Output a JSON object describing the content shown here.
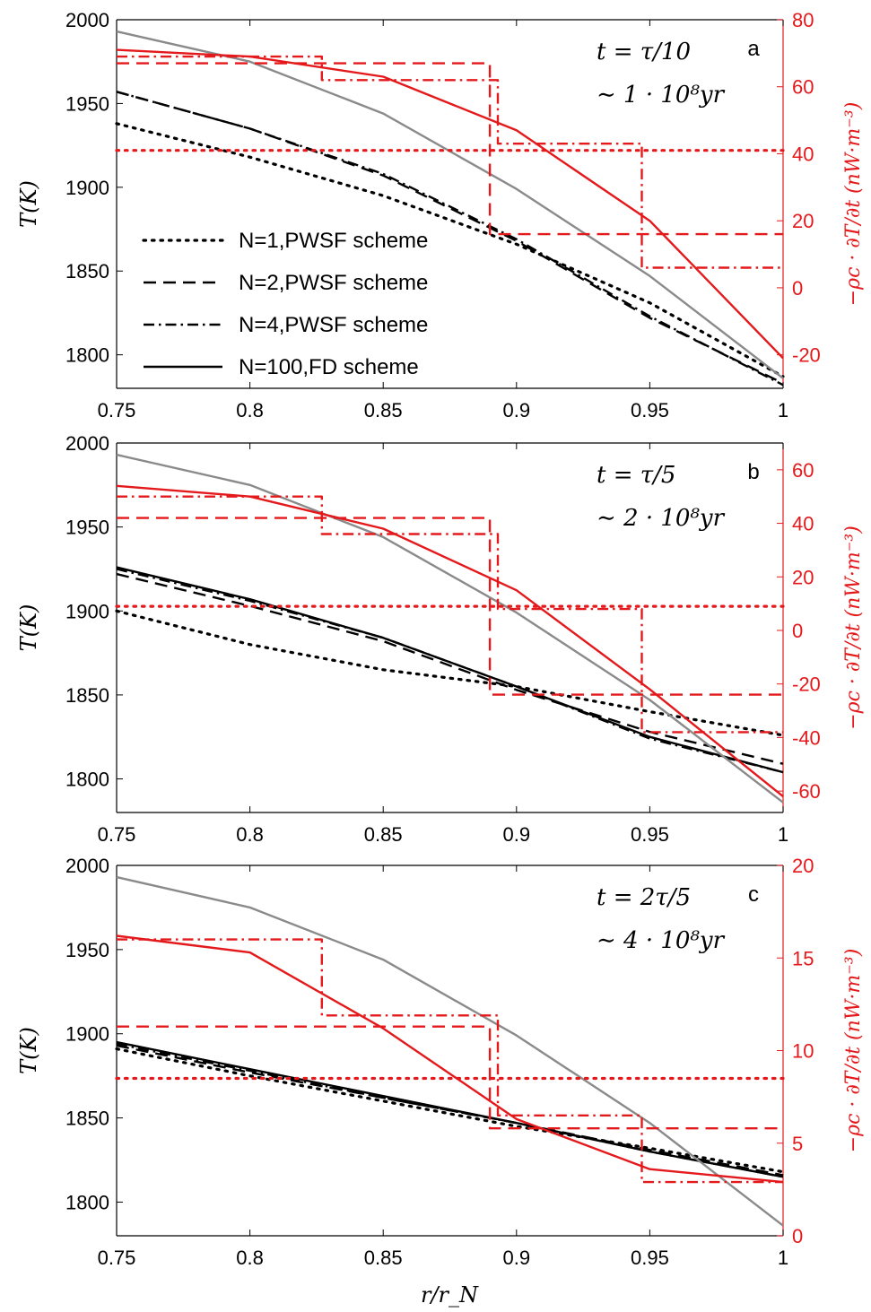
{
  "figure": {
    "xlabel": "r/r_N",
    "colors": {
      "black": "#000000",
      "red": "#e4191c",
      "gray": "#8a8a8a"
    },
    "legend": [
      "N=1,PWSF scheme",
      "N=2,PWSF scheme",
      "N=4,PWSF scheme",
      "N=100,FD scheme"
    ]
  },
  "chart_data": [
    {
      "type": "line",
      "panel": "a",
      "annotation": {
        "time": "t = τ/10",
        "age": "∼ 1 · 10⁸yr"
      },
      "xlabel": "r/r_N",
      "ylabel": "T(K)",
      "ylabel_right": "−ρc · ∂T/∂t (nW·m⁻³)",
      "xlim": [
        0.75,
        1
      ],
      "ylim": [
        1780,
        2000
      ],
      "ylim_right": [
        -30,
        80
      ],
      "xticks": [
        "0.75",
        "0.8",
        "0.85",
        "0.9",
        "0.95",
        "1"
      ],
      "yticks": [
        "1800",
        "1850",
        "1900",
        "1950",
        "2000"
      ],
      "yticks_right": [
        "-20",
        "0",
        "20",
        "40",
        "60",
        "80"
      ],
      "grid": false,
      "legend_position": "lower-left",
      "series": [
        {
          "name": "N=1,PWSF scheme",
          "axis": "left",
          "color": "#000000",
          "style": "dotted",
          "x": [
            0.75,
            0.8,
            0.85,
            0.9,
            0.95,
            1.0
          ],
          "y": [
            1938,
            1918,
            1895,
            1866,
            1831,
            1787
          ]
        },
        {
          "name": "N=2,PWSF scheme",
          "axis": "left",
          "color": "#000000",
          "style": "dashed",
          "x": [
            0.75,
            0.8,
            0.85,
            0.9,
            0.95,
            1.0
          ],
          "y": [
            1957,
            1935,
            1907,
            1868,
            1822,
            1783
          ]
        },
        {
          "name": "N=4,PWSF scheme",
          "axis": "left",
          "color": "#000000",
          "style": "dashdot",
          "x": [
            0.75,
            0.8,
            0.85,
            0.9,
            0.95,
            1.0
          ],
          "y": [
            1957,
            1935,
            1908,
            1869,
            1823,
            1782
          ]
        },
        {
          "axis": "left",
          "color": "#8a8a8a",
          "style": "solid",
          "x": [
            0.75,
            0.8,
            0.85,
            0.9,
            0.95,
            1.0
          ],
          "y": [
            1993,
            1975,
            1944,
            1899,
            1847,
            1786
          ]
        },
        {
          "axis": "right",
          "color": "#e4191c",
          "style": "solid",
          "x": [
            0.75,
            0.8,
            0.85,
            0.9,
            0.95,
            1.0
          ],
          "y": [
            71,
            69,
            63,
            47,
            20,
            -21
          ]
        },
        {
          "axis": "right",
          "color": "#e4191c",
          "style": "dotted",
          "x": [
            0.75,
            1.0
          ],
          "y": [
            41,
            41
          ]
        },
        {
          "axis": "right",
          "color": "#e4191c",
          "style": "dashed",
          "x": [
            0.75,
            0.89,
            0.89,
            1.0
          ],
          "y": [
            67,
            67,
            16,
            16
          ]
        },
        {
          "axis": "right",
          "color": "#e4191c",
          "style": "dashdot",
          "x": [
            0.75,
            0.827,
            0.827,
            0.893,
            0.893,
            0.947,
            0.947,
            1.0
          ],
          "y": [
            69,
            69,
            62,
            62,
            43,
            43,
            6,
            6
          ]
        }
      ]
    },
    {
      "type": "line",
      "panel": "b",
      "annotation": {
        "time": "t = τ/5",
        "age": "∼ 2 · 10⁸yr"
      },
      "xlabel": "r/r_N",
      "ylabel": "T(K)",
      "ylabel_right": "−ρc · ∂T/∂t (nW·m⁻³)",
      "xlim": [
        0.75,
        1
      ],
      "ylim": [
        1780,
        2000
      ],
      "ylim_right": [
        -68,
        70
      ],
      "xticks": [
        "0.75",
        "0.8",
        "0.85",
        "0.9",
        "0.95",
        "1"
      ],
      "yticks": [
        "1800",
        "1850",
        "1900",
        "1950",
        "2000"
      ],
      "yticks_right": [
        "-60",
        "-40",
        "-20",
        "0",
        "20",
        "40",
        "60"
      ],
      "grid": false,
      "series": [
        {
          "name": "N=1,PWSF scheme",
          "axis": "left",
          "color": "#000000",
          "style": "dotted",
          "x": [
            0.75,
            0.8,
            0.85,
            0.9,
            0.95,
            1.0
          ],
          "y": [
            1900,
            1880,
            1865,
            1855,
            1840,
            1826
          ]
        },
        {
          "name": "N=2,PWSF scheme",
          "axis": "left",
          "color": "#000000",
          "style": "dashed",
          "x": [
            0.75,
            0.8,
            0.85,
            0.9,
            0.95,
            1.0
          ],
          "y": [
            1922,
            1903,
            1882,
            1853,
            1828,
            1809
          ]
        },
        {
          "name": "N=4,PWSF scheme",
          "axis": "left",
          "color": "#000000",
          "style": "dashdot",
          "x": [
            0.75,
            0.8,
            0.85,
            0.9,
            0.95,
            1.0
          ],
          "y": [
            1925,
            1906,
            1884,
            1855,
            1824,
            1804
          ]
        },
        {
          "name": "N=100,FD scheme",
          "axis": "left",
          "color": "#000000",
          "style": "solid",
          "x": [
            0.75,
            0.8,
            0.85,
            0.9,
            0.95,
            1.0
          ],
          "y": [
            1926,
            1907,
            1884,
            1855,
            1825,
            1804
          ]
        },
        {
          "axis": "left",
          "color": "#8a8a8a",
          "style": "solid",
          "x": [
            0.75,
            0.8,
            0.85,
            0.9,
            0.95,
            1.0
          ],
          "y": [
            1993,
            1975,
            1944,
            1899,
            1847,
            1786
          ]
        },
        {
          "axis": "right",
          "color": "#e4191c",
          "style": "solid",
          "x": [
            0.75,
            0.8,
            0.85,
            0.9,
            0.95,
            1.0
          ],
          "y": [
            54,
            50,
            38,
            15,
            -22,
            -62
          ]
        },
        {
          "axis": "right",
          "color": "#e4191c",
          "style": "dotted",
          "x": [
            0.75,
            1.0
          ],
          "y": [
            9,
            9
          ]
        },
        {
          "axis": "right",
          "color": "#e4191c",
          "style": "dashed",
          "x": [
            0.75,
            0.89,
            0.89,
            1.0
          ],
          "y": [
            42,
            42,
            -24,
            -24
          ]
        },
        {
          "axis": "right",
          "color": "#e4191c",
          "style": "dashdot",
          "x": [
            0.75,
            0.827,
            0.827,
            0.893,
            0.893,
            0.947,
            0.947,
            1.0
          ],
          "y": [
            50,
            50,
            36,
            36,
            8,
            8,
            -38,
            -38
          ]
        }
      ]
    },
    {
      "type": "line",
      "panel": "c",
      "annotation": {
        "time": "t = 2τ/5",
        "age": "∼ 4 · 10⁸yr"
      },
      "xlabel": "r/r_N",
      "ylabel": "T(K)",
      "ylabel_right": "−ρc · ∂T/∂t (nW·m⁻³)",
      "xlim": [
        0.75,
        1
      ],
      "ylim": [
        1780,
        2000
      ],
      "ylim_right": [
        0,
        20
      ],
      "xticks": [
        "0.75",
        "0.8",
        "0.85",
        "0.9",
        "0.95",
        "1"
      ],
      "yticks": [
        "1800",
        "1850",
        "1900",
        "1950",
        "2000"
      ],
      "yticks_right": [
        "0",
        "5",
        "10",
        "15",
        "20"
      ],
      "grid": false,
      "series": [
        {
          "name": "N=1,PWSF scheme",
          "axis": "left",
          "color": "#000000",
          "style": "dotted",
          "x": [
            0.75,
            0.8,
            0.85,
            0.9,
            0.95,
            1.0
          ],
          "y": [
            1891,
            1875,
            1860,
            1845,
            1832,
            1818
          ]
        },
        {
          "name": "N=2,PWSF scheme",
          "axis": "left",
          "color": "#000000",
          "style": "dashed",
          "x": [
            0.75,
            0.8,
            0.85,
            0.9,
            0.95,
            1.0
          ],
          "y": [
            1893,
            1877,
            1862,
            1847,
            1831,
            1816
          ]
        },
        {
          "name": "N=4,PWSF scheme",
          "axis": "left",
          "color": "#000000",
          "style": "dashdot",
          "x": [
            0.75,
            0.8,
            0.85,
            0.9,
            0.95,
            1.0
          ],
          "y": [
            1894,
            1878,
            1862,
            1847,
            1830,
            1815
          ]
        },
        {
          "name": "N=100,FD scheme",
          "axis": "left",
          "color": "#000000",
          "style": "solid",
          "x": [
            0.75,
            0.8,
            0.85,
            0.9,
            0.95,
            1.0
          ],
          "y": [
            1895,
            1879,
            1863,
            1847,
            1830,
            1815
          ]
        },
        {
          "axis": "left",
          "color": "#8a8a8a",
          "style": "solid",
          "x": [
            0.75,
            0.8,
            0.85,
            0.9,
            0.95,
            1.0
          ],
          "y": [
            1993,
            1975,
            1944,
            1899,
            1847,
            1786
          ]
        },
        {
          "axis": "right",
          "color": "#e4191c",
          "style": "solid",
          "x": [
            0.75,
            0.8,
            0.85,
            0.9,
            0.95,
            1.0
          ],
          "y": [
            16.2,
            15.3,
            11.2,
            6.3,
            3.6,
            2.9
          ]
        },
        {
          "axis": "right",
          "color": "#e4191c",
          "style": "dotted",
          "x": [
            0.75,
            1.0
          ],
          "y": [
            8.5,
            8.5
          ]
        },
        {
          "axis": "right",
          "color": "#e4191c",
          "style": "dashed",
          "x": [
            0.75,
            0.89,
            0.89,
            1.0
          ],
          "y": [
            11.3,
            11.3,
            5.8,
            5.8
          ]
        },
        {
          "axis": "right",
          "color": "#e4191c",
          "style": "dashdot",
          "x": [
            0.75,
            0.827,
            0.827,
            0.893,
            0.893,
            0.947,
            0.947,
            1.0
          ],
          "y": [
            16.0,
            16.0,
            11.9,
            11.9,
            6.5,
            6.5,
            2.9,
            2.9
          ]
        }
      ]
    }
  ]
}
